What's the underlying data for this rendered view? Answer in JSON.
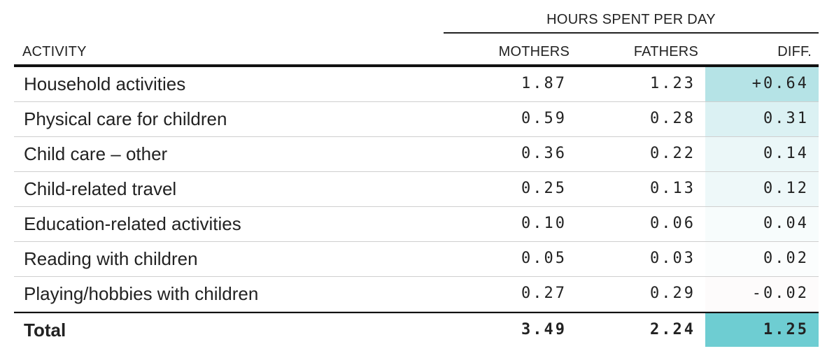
{
  "header": {
    "group_label": "HOURS SPENT PER DAY",
    "columns": {
      "activity": "ACTIVITY",
      "mothers": "MOTHERS",
      "fathers": "FATHERS",
      "diff": "DIFF."
    }
  },
  "rows": [
    {
      "activity": "Household activities",
      "mothers": "1.87",
      "fathers": "1.23",
      "diff": "+0.64",
      "diff_color": "#b5e3e6"
    },
    {
      "activity": "Physical care for children",
      "mothers": "0.59",
      "fathers": "0.28",
      "diff": "0.31",
      "diff_color": "#dbf1f3"
    },
    {
      "activity": "Child care – other",
      "mothers": "0.36",
      "fathers": "0.22",
      "diff": "0.14",
      "diff_color": "#ebf7f8"
    },
    {
      "activity": "Child-related travel",
      "mothers": "0.25",
      "fathers": "0.13",
      "diff": "0.12",
      "diff_color": "#eef8f9"
    },
    {
      "activity": "Education-related activities",
      "mothers": "0.10",
      "fathers": "0.06",
      "diff": "0.04",
      "diff_color": "#f7fcfc"
    },
    {
      "activity": "Reading with children",
      "mothers": "0.05",
      "fathers": "0.03",
      "diff": "0.02",
      "diff_color": "#fbfdfd"
    },
    {
      "activity": "Playing/hobbies with children",
      "mothers": "0.27",
      "fathers": "0.29",
      "diff": "-0.02",
      "diff_color": "#fdfbfb"
    }
  ],
  "total": {
    "activity": "Total",
    "mothers": "3.49",
    "fathers": "2.24",
    "diff": "1.25",
    "diff_color": "#6ecdd2"
  }
}
